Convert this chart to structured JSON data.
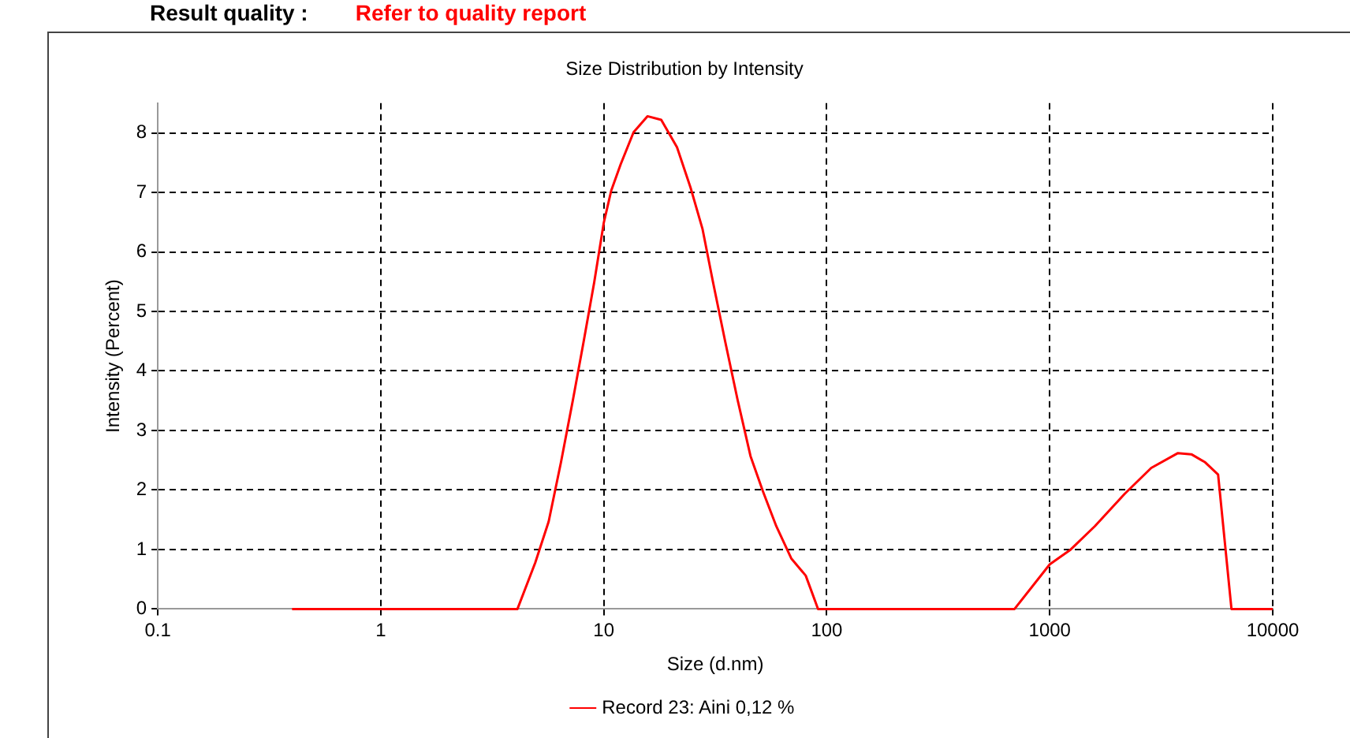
{
  "chart_data": {
    "type": "line",
    "title": "Size Distribution by Intensity",
    "xlabel": "Size (d.nm)",
    "ylabel": "Intensity (Percent)",
    "annotations": [
      "Result quality :",
      "Refer to quality report"
    ],
    "log": "x",
    "xlim": [
      0.1,
      10000
    ],
    "xticks": [
      0.1,
      1,
      10,
      100,
      1000,
      10000
    ],
    "ylim": [
      0,
      8.5
    ],
    "yticks": [
      0,
      1,
      2,
      3,
      4,
      5,
      6,
      7,
      8
    ],
    "grid": true,
    "legend": "bottom",
    "marker": "none",
    "line_style": "solid",
    "series": [
      {
        "name": "Record 23: Aini 0,12 %",
        "color": "#ff0000",
        "x": [
          0.4,
          4.1,
          4.93,
          5.66,
          6.43,
          7.26,
          8.11,
          9.06,
          10,
          10.8,
          11.9,
          13.6,
          15.7,
          18.1,
          21.3,
          24.5,
          27.7,
          30.9,
          35.1,
          39.9,
          45.5,
          51.7,
          59.4,
          69.3,
          80.5,
          91.4,
          695,
          1000,
          1242,
          1592,
          2161,
          2851,
          3758,
          4315,
          4955,
          5689,
          6531,
          10000
        ],
        "values": [
          0,
          0,
          0.78,
          1.47,
          2.47,
          3.5,
          4.48,
          5.49,
          6.49,
          7.03,
          7.47,
          8.01,
          8.28,
          8.22,
          7.76,
          7.08,
          6.39,
          5.49,
          4.48,
          3.5,
          2.57,
          1.98,
          1.39,
          0.85,
          0.56,
          0,
          0,
          0.75,
          1.0,
          1.39,
          1.93,
          2.37,
          2.62,
          2.6,
          2.47,
          2.26,
          0,
          0
        ]
      }
    ]
  }
}
